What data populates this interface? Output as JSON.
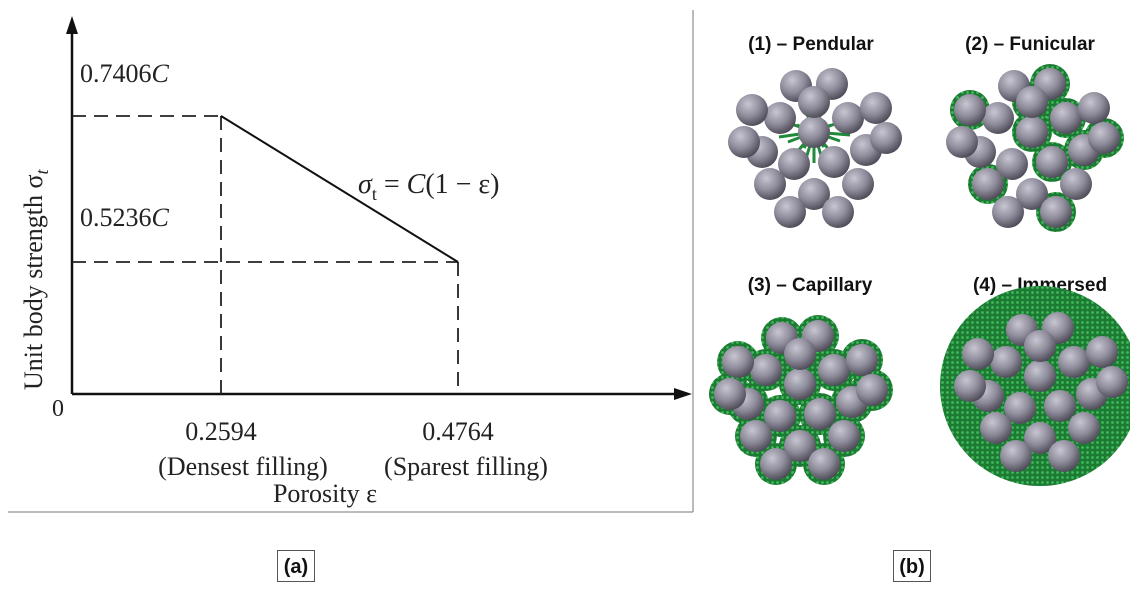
{
  "panel_a": {
    "y_axis_label": "Unit body strength σ",
    "y_axis_subscript": "t",
    "x_axis_label": "Porosity ε",
    "origin_label": "0",
    "y_ticks": [
      {
        "value_text": "0.7406",
        "suffix": "C"
      },
      {
        "value_text": "0.5236",
        "suffix": "C"
      }
    ],
    "x_ticks": [
      {
        "value_text": "0.2594",
        "note": "(Densest filling)"
      },
      {
        "value_text": "0.4764",
        "note": "(Sparest filling)"
      }
    ],
    "formula": {
      "lhs": "σ",
      "lhs_sub": "t",
      "rhs_prefix": " = ",
      "rhs_var": "C",
      "rhs_body": "(1 − ε)"
    },
    "panel_label": "(a)"
  },
  "panel_b": {
    "states": [
      {
        "label": "(1) – Pendular",
        "liquid_level": "bridges"
      },
      {
        "label": "(2) – Funicular",
        "liquid_level": "partial"
      },
      {
        "label": "(3) – Capillary",
        "liquid_level": "filled"
      },
      {
        "label": "(4) – Immersed",
        "liquid_level": "immersed"
      }
    ],
    "panel_label": "(b)",
    "colors": {
      "particle": "#8e8b9a",
      "liquid": "#1e8a3a"
    }
  }
}
